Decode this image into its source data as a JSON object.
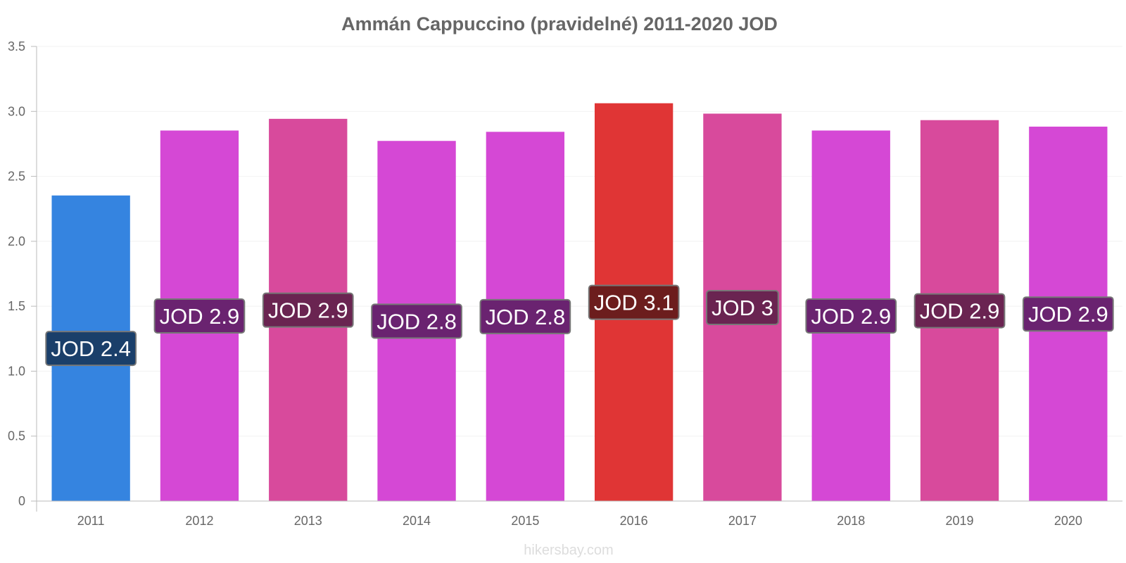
{
  "chart_data": {
    "type": "bar",
    "title": "Ammán Cappuccino (pravidelné) 2011-2020 JOD",
    "categories": [
      "2011",
      "2012",
      "2013",
      "2014",
      "2015",
      "2016",
      "2017",
      "2018",
      "2019",
      "2020"
    ],
    "values": [
      2.35,
      2.85,
      2.94,
      2.77,
      2.84,
      3.06,
      2.98,
      2.85,
      2.93,
      2.88
    ],
    "labels": [
      "JOD 2.4",
      "JOD 2.9",
      "JOD 2.9",
      "JOD 2.8",
      "JOD 2.8",
      "JOD 3.1",
      "JOD 3",
      "JOD 2.9",
      "JOD 2.9",
      "JOD 2.9"
    ],
    "bar_colors": [
      "#3584e0",
      "#d548d5",
      "#d84a9c",
      "#d548d5",
      "#d548d5",
      "#e03535",
      "#d84a9c",
      "#d548d5",
      "#d84a9c",
      "#d548d5"
    ],
    "label_bg_colors": [
      "#1a3f6a",
      "#6a2370",
      "#6a2451",
      "#6a2370",
      "#6a2370",
      "#6c1d1d",
      "#6a2451",
      "#6a2370",
      "#6a2451",
      "#6a2370"
    ],
    "ylim": [
      0,
      3.5
    ],
    "yticks": [
      "0",
      "0.5",
      "1.0",
      "1.5",
      "2.0",
      "2.5",
      "3.0",
      "3.5"
    ],
    "ytick_values": [
      0,
      0.5,
      1.0,
      1.5,
      2.0,
      2.5,
      3.0,
      3.5
    ],
    "xlabel": "",
    "ylabel": "",
    "grid": true
  },
  "credit": "hikersbay.com"
}
